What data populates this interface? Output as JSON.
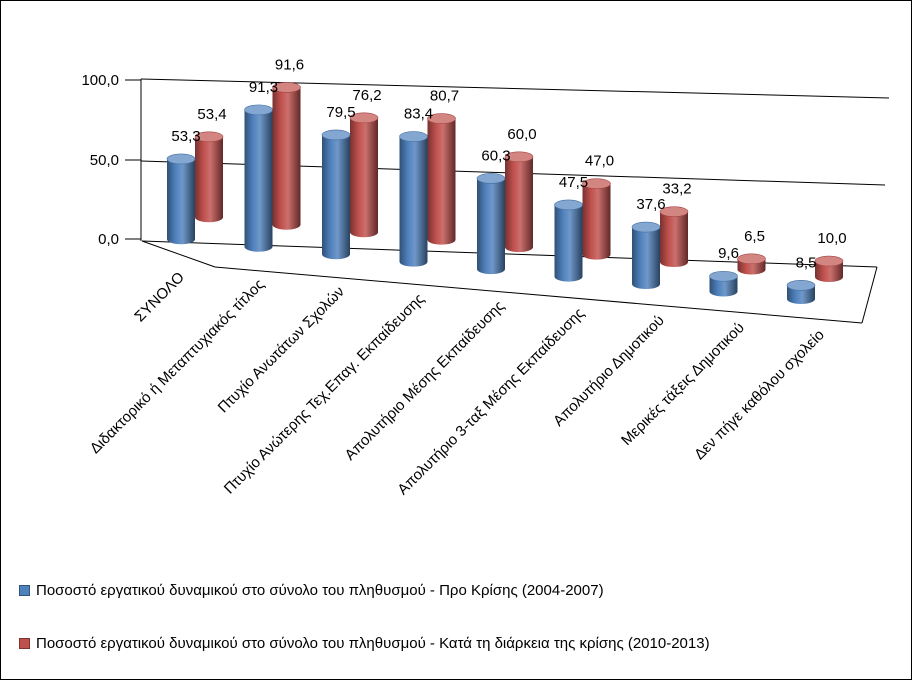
{
  "chart_data": {
    "type": "bar",
    "variant": "3d-cylinder-grouped",
    "categories": [
      "ΣΥΝΟΛΟ",
      "Διδακτορικό ή Μεταπτυχιακός τίτλος",
      "Πτυχίο Ανωτάτων Σχολών",
      "Πτυχίο Ανώτερης Τεχ.Επαγ. Εκπαίδευσης",
      "Απολυτήριο Μέσης Εκπαίδευσης",
      "Απολυτήριο 3-ταξ Μέσης Εκπαίδευσης",
      "Απολυτήριο Δημοτικού",
      "Μερικές τάξεις Δημοτικού",
      "Δεν πήγε καθόλου σχολείο"
    ],
    "series": [
      {
        "name": "Ποσοστό εργατικού δυναμικού στο σύνολο του πληθυσμού - Προ Κρίσης (2004-2007)",
        "values": [
          53.3,
          91.3,
          79.5,
          83.4,
          60.3,
          47.5,
          37.6,
          9.6,
          8.5
        ],
        "labels": [
          "53,3",
          "91,3",
          "79,5",
          "83,4",
          "60,3",
          "47,5",
          "37,6",
          "9,6",
          "8,5"
        ],
        "color": "#4F81BD"
      },
      {
        "name": "Ποσοστό εργατικού δυναμικού στο σύνολο του πληθυσμού - Κατά τη διάρκεια της κρίσης (2010-2013)",
        "values": [
          53.4,
          91.6,
          76.2,
          80.7,
          60.0,
          47.0,
          33.2,
          6.5,
          10.0
        ],
        "labels": [
          "53,4",
          "91,6",
          "76,2",
          "80,7",
          "60,0",
          "47,0",
          "33,2",
          "6,5",
          "10,0"
        ],
        "color": "#C0504D"
      }
    ],
    "y_ticks": [
      "0,0",
      "50,0",
      "100,0"
    ],
    "ylim": [
      0,
      100
    ],
    "legend_position": "bottom",
    "grid": false
  }
}
